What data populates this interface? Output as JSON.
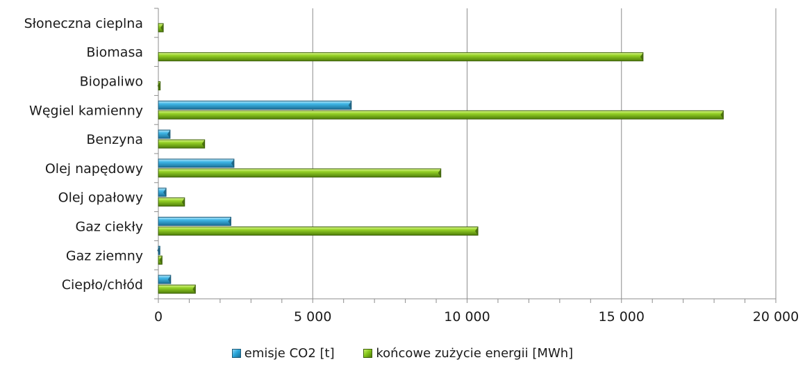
{
  "chart_data": {
    "type": "bar",
    "orientation": "horizontal",
    "categories": [
      "Słoneczna cieplna",
      "Biomasa",
      "Biopaliwo",
      "Węgiel kamienny",
      "Benzyna",
      "Olej napędowy",
      "Olej opałowy",
      "Gaz ciekły",
      "Gaz ziemny",
      "Ciepło/chłód"
    ],
    "series": [
      {
        "name": "emisje CO2 [t]",
        "color": "#2aa8dc",
        "values": [
          0,
          0,
          0,
          6250,
          380,
          2450,
          250,
          2350,
          50,
          400
        ]
      },
      {
        "name": "końcowe zużycie energii [MWh]",
        "color": "#86c81a",
        "values": [
          160,
          15700,
          60,
          18300,
          1500,
          9150,
          850,
          10350,
          120,
          1200
        ]
      }
    ],
    "xlim": [
      0,
      20000
    ],
    "ticks": [
      0,
      5000,
      10000,
      15000,
      20000
    ],
    "tick_labels": [
      "0",
      "5 000",
      "10 000",
      "15 000",
      "20 000"
    ],
    "grid": true,
    "legend_position": "bottom"
  }
}
